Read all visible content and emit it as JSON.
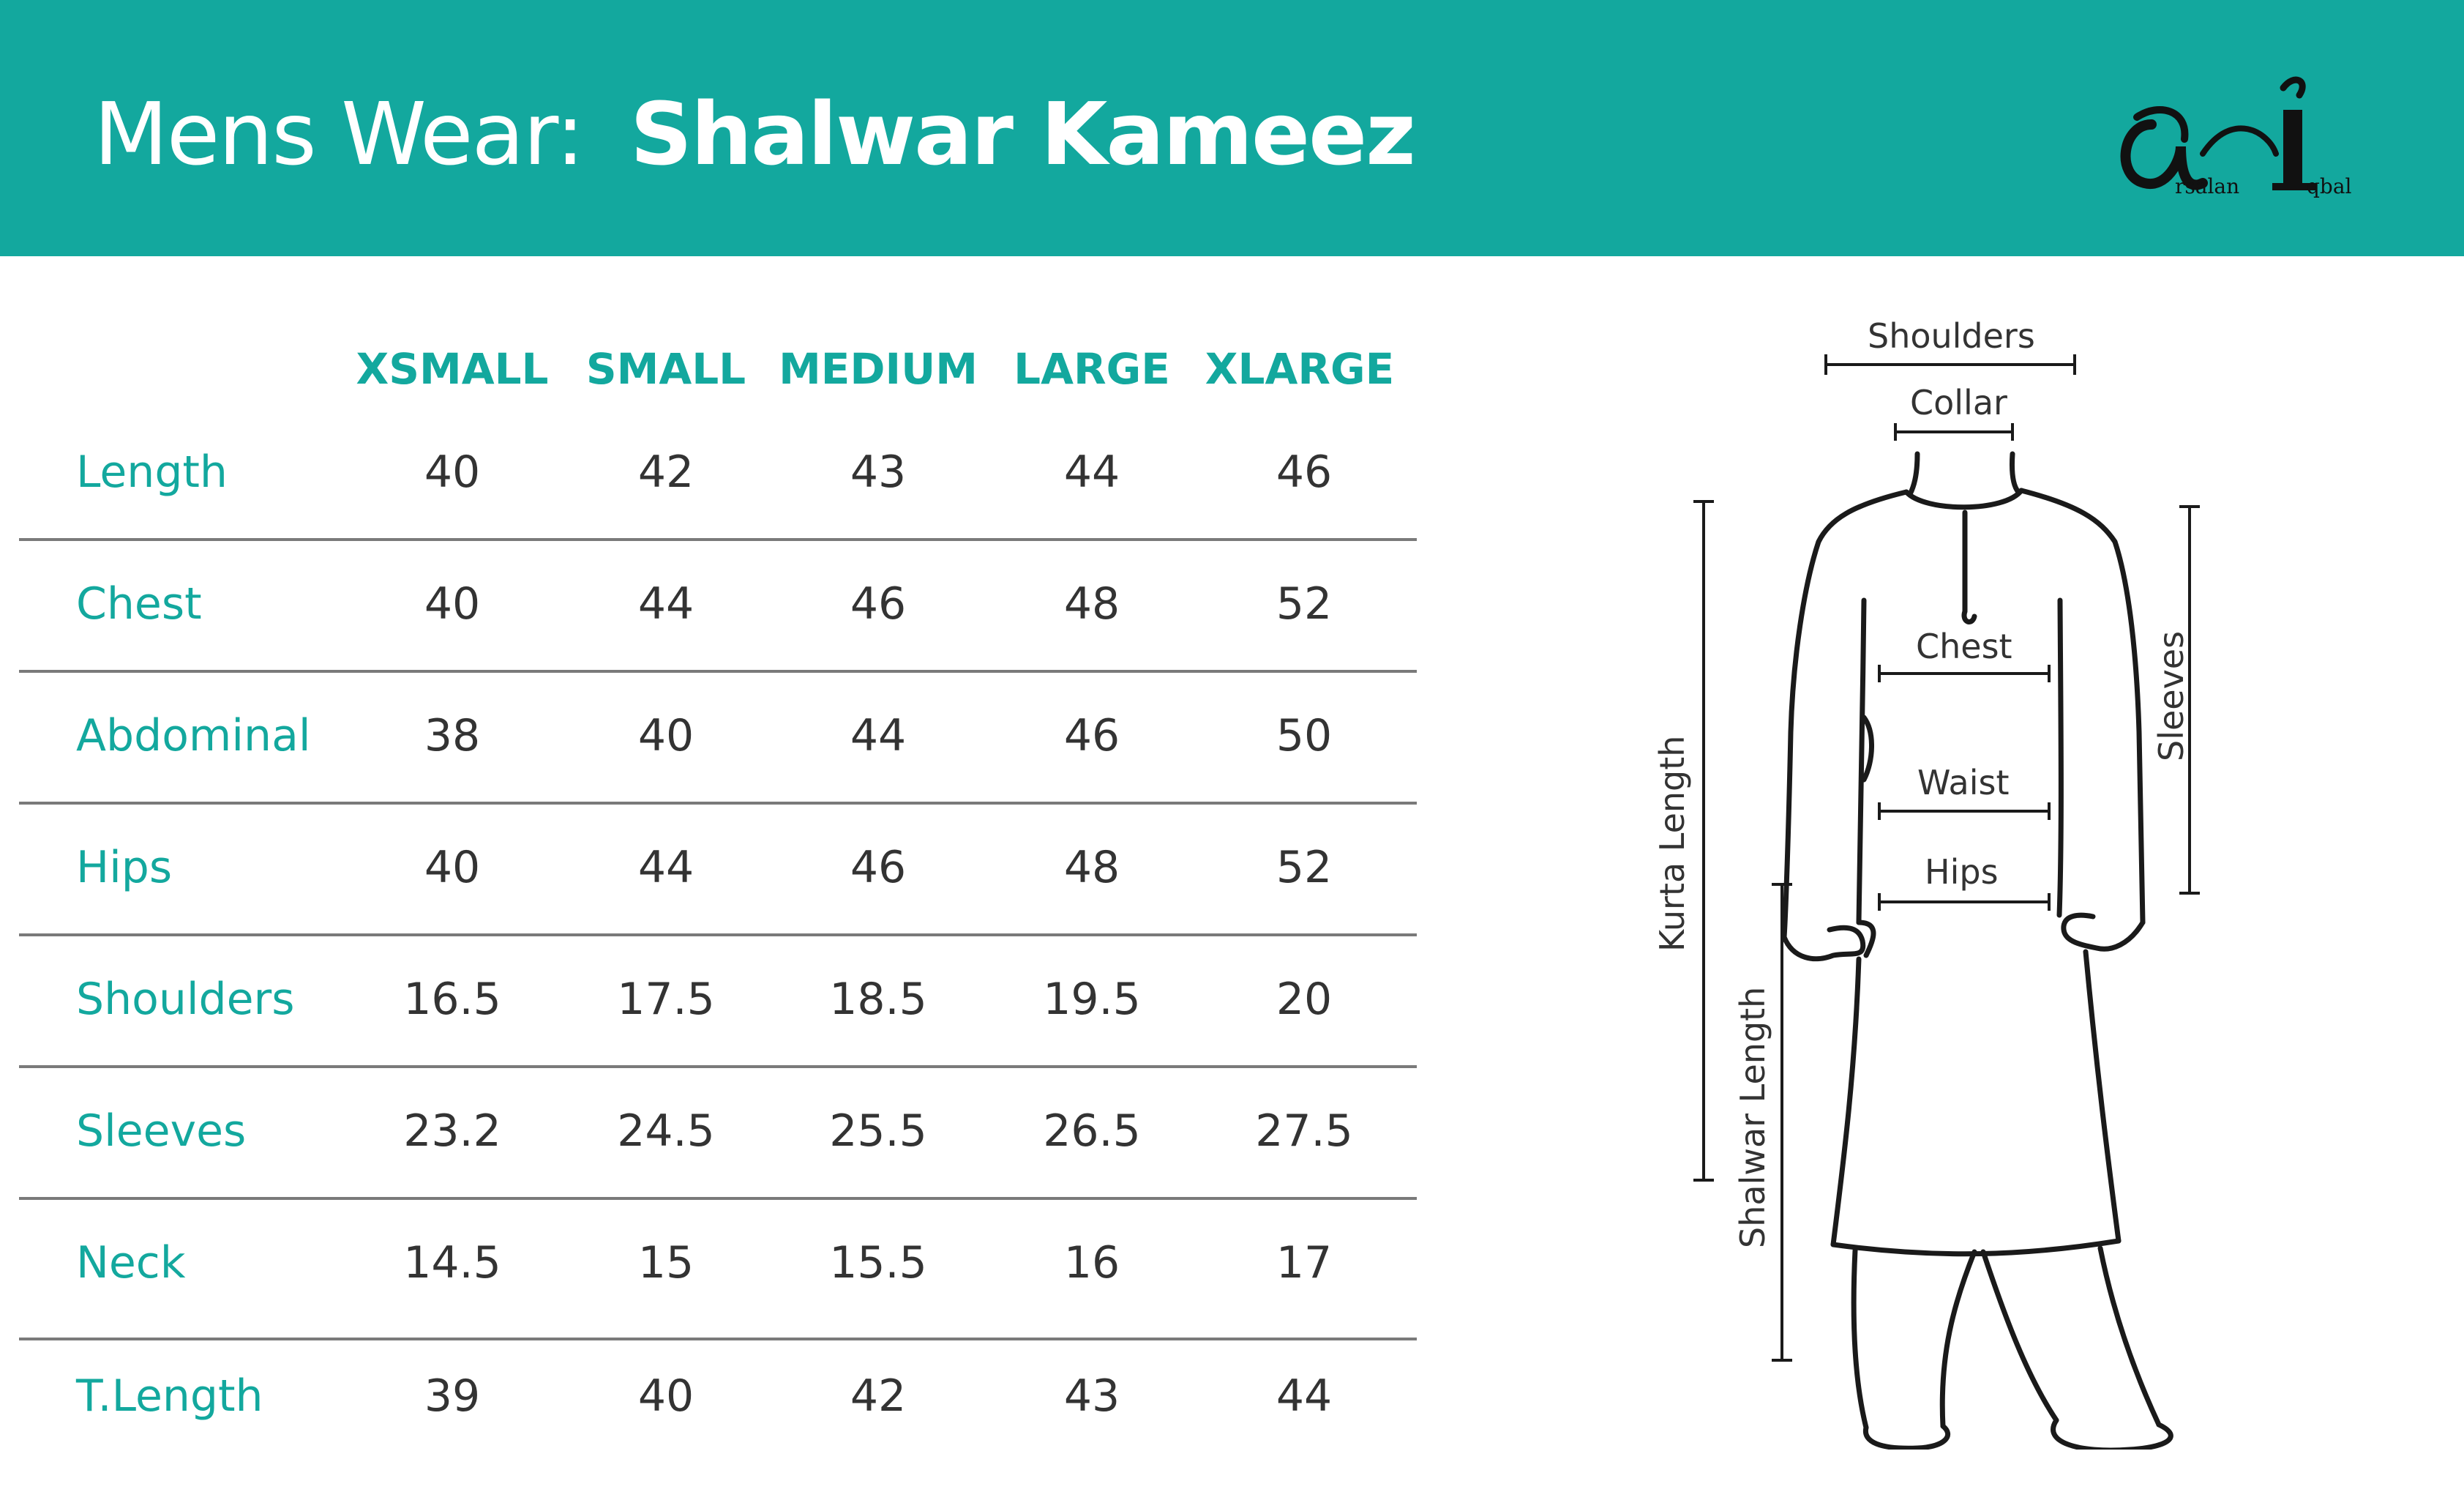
{
  "header": {
    "prefix": "Mens Wear:",
    "title": "Shalwar Kameez",
    "logo": {
      "first_name": "rsalan",
      "last_name": "qbal"
    },
    "background_color": "#13a89e"
  },
  "table": {
    "columns": [
      "XSMALL",
      "SMALL",
      "MEDIUM",
      "LARGE",
      "XLARGE"
    ],
    "rows": [
      {
        "label": "Length",
        "values": [
          "40",
          "42",
          "43",
          "44",
          "46"
        ]
      },
      {
        "label": "Chest",
        "values": [
          "40",
          "44",
          "46",
          "48",
          "52"
        ]
      },
      {
        "label": "Abdominal",
        "values": [
          "38",
          "40",
          "44",
          "46",
          "50"
        ]
      },
      {
        "label": "Hips",
        "values": [
          "40",
          "44",
          "46",
          "48",
          "52"
        ]
      },
      {
        "label": "Shoulders",
        "values": [
          "16.5",
          "17.5",
          "18.5",
          "19.5",
          "20"
        ]
      },
      {
        "label": "Sleeves",
        "values": [
          "23.2",
          "24.5",
          "25.5",
          "26.5",
          "27.5"
        ]
      },
      {
        "label": "Neck",
        "values": [
          "14.5",
          "15",
          "15.5",
          "16",
          "17"
        ]
      },
      {
        "label": "T.Length",
        "values": [
          "39",
          "40",
          "42",
          "43",
          "44"
        ]
      }
    ],
    "accent_color": "#13a89e",
    "value_color": "#333333"
  },
  "diagram": {
    "labels": {
      "shoulders": "Shoulders",
      "collar": "Collar",
      "chest": "Chest",
      "waist": "Waist",
      "hips": "Hips",
      "sleeves": "Sleeves",
      "kurta_length": "Kurta Length",
      "shalwar_length": "Shalwar Length"
    }
  }
}
